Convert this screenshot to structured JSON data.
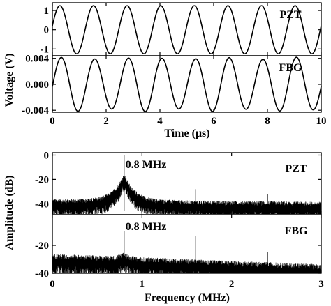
{
  "chart_data": [
    {
      "type": "line",
      "xlabel": "Time (μs)",
      "ylabel": "Voltage (V)",
      "xlim": [
        0,
        10
      ],
      "x_ticks": [
        "0",
        "2",
        "4",
        "6",
        "8",
        "10"
      ],
      "panels": [
        {
          "name": "PZT",
          "ylim": [
            -1.35,
            1.4
          ],
          "y_ticks": [
            "1",
            "0",
            "-1"
          ],
          "y_tick_values": [
            1,
            0,
            -1
          ],
          "signal": {
            "amplitude": 1.25,
            "period_us": 1.25,
            "peak_time_us": 0.28
          }
        },
        {
          "name": "FBG",
          "ylim": [
            -0.0043,
            0.0044
          ],
          "y_ticks": [
            "0.004",
            "0.000",
            "-0.004"
          ],
          "y_tick_values": [
            0.004,
            0.0,
            -0.004
          ],
          "signal": {
            "amplitude": 0.004,
            "period_us": 1.25,
            "peak_time_us": 0.33
          }
        }
      ]
    },
    {
      "type": "line",
      "xlabel": "Frequency (MHz)",
      "ylabel": "Amplitude (dB)",
      "xlim": [
        0,
        3
      ],
      "x_ticks": [
        "0",
        "1",
        "2",
        "3"
      ],
      "panels": [
        {
          "name": "PZT",
          "ylim": [
            -49,
            2
          ],
          "y_ticks": [
            "0",
            "-20",
            "-40"
          ],
          "y_tick_values": [
            0,
            -20,
            -40
          ],
          "annotation": "0.8 MHz",
          "noise_floor_db": -40,
          "peaks": [
            {
              "freq_mhz": 0.8,
              "db": 0
            },
            {
              "freq_mhz": 1.6,
              "db": -28
            },
            {
              "freq_mhz": 2.0,
              "db": -40
            },
            {
              "freq_mhz": 2.4,
              "db": -32
            },
            {
              "freq_mhz": 2.8,
              "db": -41
            }
          ]
        },
        {
          "name": "FBG",
          "ylim": [
            -40,
            2
          ],
          "y_ticks": [
            "-20",
            "-40"
          ],
          "y_tick_values": [
            -20,
            -40
          ],
          "annotation": "0.8 MHz",
          "noise_floor_db": -30,
          "peaks": [
            {
              "freq_mhz": 0.8,
              "db": -10
            },
            {
              "freq_mhz": 1.6,
              "db": -13
            },
            {
              "freq_mhz": 2.4,
              "db": -25
            }
          ]
        }
      ]
    }
  ]
}
